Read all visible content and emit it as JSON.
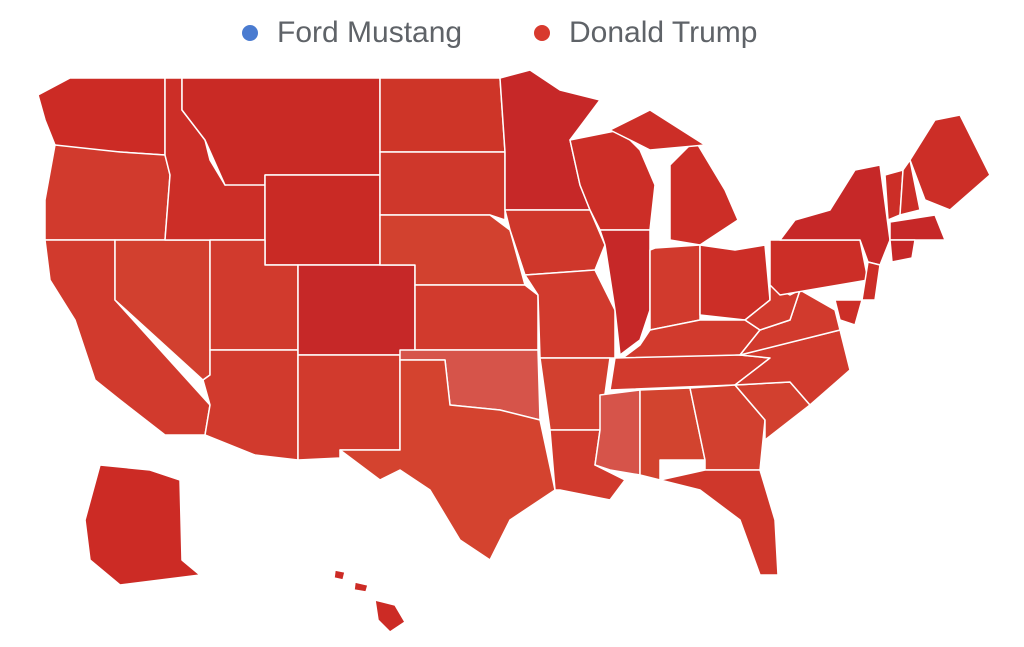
{
  "legend": {
    "items": [
      {
        "label": "Ford Mustang",
        "color": "#4a7bd0"
      },
      {
        "label": "Donald Trump",
        "color": "#d83a2e"
      }
    ]
  }
}
